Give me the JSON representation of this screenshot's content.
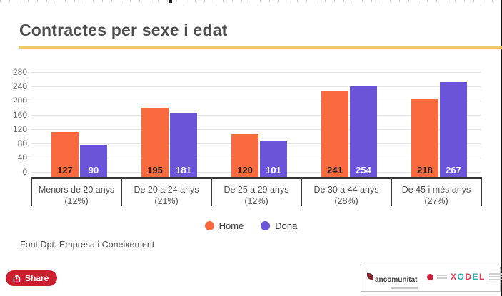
{
  "header": {
    "title": "Contractes per sexe i edat"
  },
  "accent_color": "#EFC964",
  "chart_data": {
    "type": "bar",
    "title": "Contractes per sexe i edat",
    "categories": [
      "Menors de 20 anys",
      "De 20 a 24 anys",
      "De 25 a 29 anys",
      "De 30 a 44 anys",
      "De 45 i més anys"
    ],
    "category_sublabels": [
      "(12%)",
      "(21%)",
      "(12%)",
      "(28%)",
      "(27%)"
    ],
    "series": [
      {
        "name": "Home",
        "color": "#F96A3F",
        "value_label_color": "#1a1a1a",
        "values": [
          127,
          195,
          120,
          241,
          218
        ]
      },
      {
        "name": "Dona",
        "color": "#6B54D8",
        "value_label_color": "#ffffff",
        "values": [
          90,
          181,
          101,
          254,
          267
        ]
      }
    ],
    "ylim": [
      0,
      280
    ],
    "yticks": [
      280,
      240,
      200,
      160,
      120,
      80,
      40,
      0
    ],
    "grid": true,
    "legend_position": "bottom",
    "value_labels": "inside-base"
  },
  "legend": {
    "items": [
      "Home",
      "Dona"
    ]
  },
  "source": {
    "text": "Font:Dpt. Empresa i Coneixement"
  },
  "share_button": {
    "label": "Share",
    "color": "#CB1F2F"
  },
  "footer_logos": {
    "mancomunitat": {
      "text": "ancomunitat"
    },
    "xodel": {
      "text": "XODEL",
      "letter_colors": [
        "#E23B5A",
        "#29AFB4",
        "#E23B5A",
        "#29AFB4",
        "#E23B5A"
      ]
    }
  }
}
